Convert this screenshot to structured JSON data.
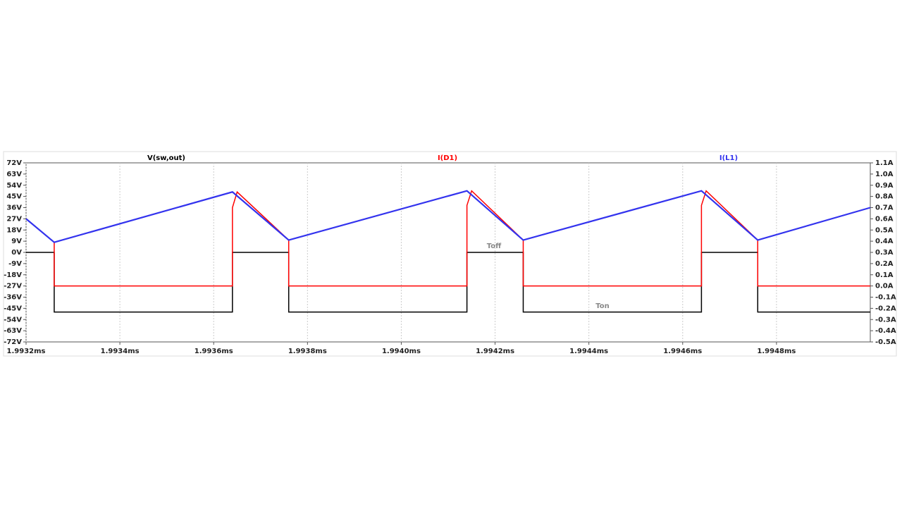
{
  "chart_data": {
    "type": "line",
    "xlim": [
      1.9932,
      1.995
    ],
    "xticks": [
      {
        "value": 1.9932,
        "label": "1.9932ms"
      },
      {
        "value": 1.9934,
        "label": "1.9934ms"
      },
      {
        "value": 1.9936,
        "label": "1.9936ms"
      },
      {
        "value": 1.9938,
        "label": "1.9938ms"
      },
      {
        "value": 1.994,
        "label": "1.9940ms"
      },
      {
        "value": 1.9942,
        "label": "1.9942ms"
      },
      {
        "value": 1.9944,
        "label": "1.9944ms"
      },
      {
        "value": 1.9946,
        "label": "1.9946ms"
      },
      {
        "value": 1.9948,
        "label": "1.9948ms"
      }
    ],
    "ylim": [
      -72,
      72
    ],
    "yticks": [
      {
        "value": 72,
        "label": "72V"
      },
      {
        "value": 63,
        "label": "63V"
      },
      {
        "value": 54,
        "label": "54V"
      },
      {
        "value": 45,
        "label": "45V"
      },
      {
        "value": 36,
        "label": "36V"
      },
      {
        "value": 27,
        "label": "27V"
      },
      {
        "value": 18,
        "label": "18V"
      },
      {
        "value": 9,
        "label": "9V"
      },
      {
        "value": 0,
        "label": "0V"
      },
      {
        "value": -9,
        "label": "-9V"
      },
      {
        "value": -18,
        "label": "-18V"
      },
      {
        "value": -27,
        "label": "-27V"
      },
      {
        "value": -36,
        "label": "-36V"
      },
      {
        "value": -45,
        "label": "-45V"
      },
      {
        "value": -54,
        "label": "-54V"
      },
      {
        "value": -63,
        "label": "-63V"
      },
      {
        "value": -72,
        "label": "-72V"
      }
    ],
    "y2lim": [
      -0.5,
      1.1
    ],
    "y2ticks": [
      {
        "value": 1.1,
        "label": "1.1A"
      },
      {
        "value": 1.0,
        "label": "1.0A"
      },
      {
        "value": 0.9,
        "label": "0.9A"
      },
      {
        "value": 0.8,
        "label": "0.8A"
      },
      {
        "value": 0.7,
        "label": "0.7A"
      },
      {
        "value": 0.6,
        "label": "0.6A"
      },
      {
        "value": 0.5,
        "label": "0.5A"
      },
      {
        "value": 0.4,
        "label": "0.4A"
      },
      {
        "value": 0.3,
        "label": "0.3A"
      },
      {
        "value": 0.2,
        "label": "0.2A"
      },
      {
        "value": 0.1,
        "label": "0.1A"
      },
      {
        "value": 0.0,
        "label": "0.0A"
      },
      {
        "value": -0.1,
        "label": "-0.1A"
      },
      {
        "value": -0.2,
        "label": "-0.2A"
      },
      {
        "value": -0.3,
        "label": "-0.3A"
      },
      {
        "value": -0.4,
        "label": "-0.4A"
      },
      {
        "value": -0.5,
        "label": "-0.5A"
      }
    ],
    "grid": true,
    "series": [
      {
        "name": "V(sw,out)",
        "color": "#000000",
        "axis": "y",
        "x": [
          1.9932,
          1.99326,
          1.99326,
          1.99364,
          1.99364,
          1.99376,
          1.99376,
          1.99414,
          1.99414,
          1.99426,
          1.99426,
          1.99464,
          1.99464,
          1.99476,
          1.99476,
          1.995
        ],
        "values": [
          0,
          0,
          -48,
          -48,
          0,
          0,
          -48,
          -48,
          0,
          0,
          -48,
          -48,
          0,
          0,
          -48,
          -48
        ]
      },
      {
        "name": "I(D1)",
        "color": "#ff0000",
        "axis": "y2",
        "x": [
          1.9932,
          1.99326,
          1.99326,
          1.99364,
          1.99364,
          1.99365,
          1.99376,
          1.99376,
          1.99414,
          1.99414,
          1.99415,
          1.99426,
          1.99426,
          1.99464,
          1.99464,
          1.99465,
          1.99476,
          1.99476,
          1.995
        ],
        "values": [
          0.6,
          0.39,
          0,
          0,
          0.7,
          0.84,
          0.41,
          0,
          0,
          0.72,
          0.85,
          0.41,
          0,
          0,
          0.72,
          0.85,
          0.41,
          0,
          0
        ]
      },
      {
        "name": "I(L1)",
        "color": "#3333ee",
        "axis": "y2",
        "x": [
          1.9932,
          1.99326,
          1.99364,
          1.99376,
          1.99414,
          1.99426,
          1.99464,
          1.99476,
          1.995
        ],
        "values": [
          0.6,
          0.39,
          0.84,
          0.41,
          0.85,
          0.41,
          0.85,
          0.41,
          0.7
        ]
      }
    ],
    "annotations": [
      "Toff",
      "Ton"
    ]
  }
}
